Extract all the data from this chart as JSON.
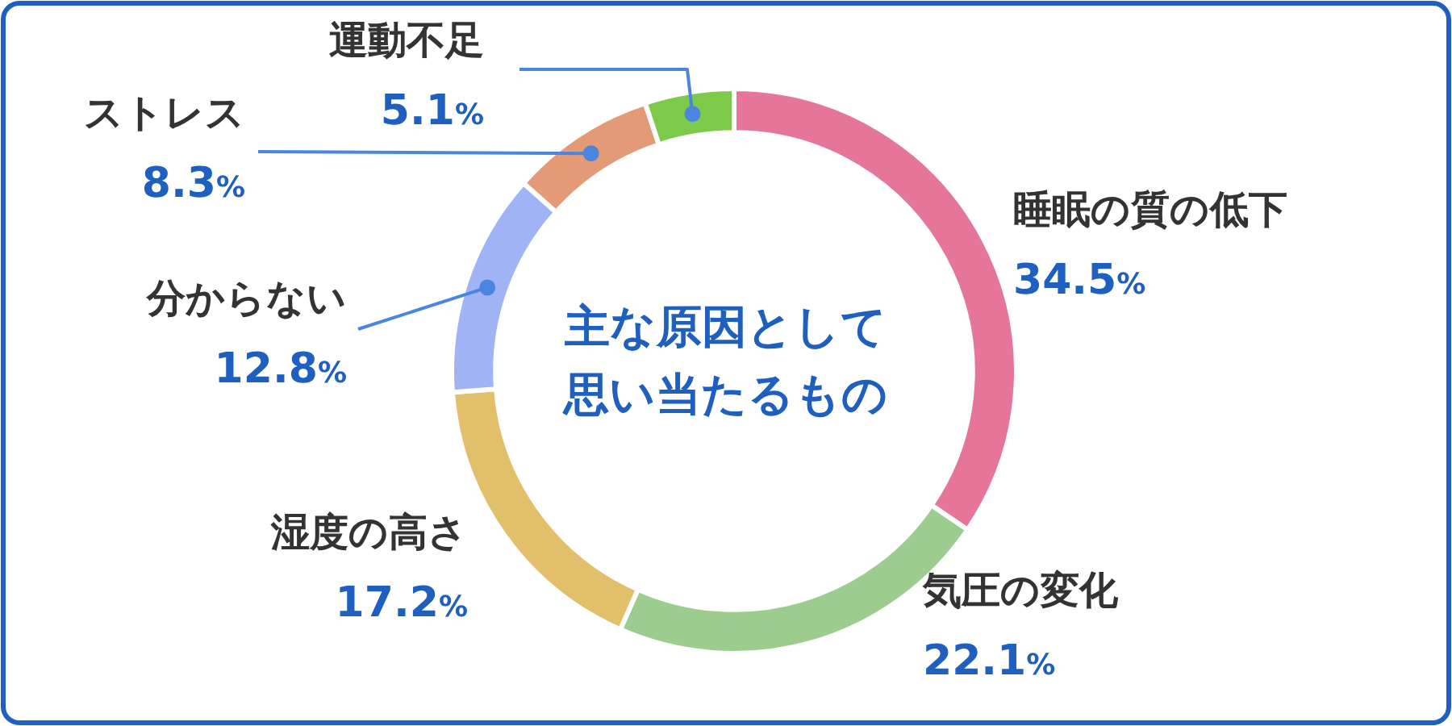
{
  "chart_data": {
    "type": "donut",
    "title": "主な原因として思い当たるもの",
    "categories": [
      "睡眠の質の低下",
      "気圧の変化",
      "湿度の高さ",
      "分からない",
      "ストレス",
      "運動不足"
    ],
    "values": [
      34.5,
      22.1,
      17.2,
      12.8,
      8.3,
      5.1
    ],
    "colors": [
      "#e5769a",
      "#9dcc8f",
      "#e2bf6a",
      "#9fb3f5",
      "#e59a77",
      "#7dc94a"
    ],
    "value_labels": [
      "34.5%",
      "22.1%",
      "17.2%",
      "12.8%",
      "8.3%",
      "5.1%"
    ],
    "legend": false
  }
}
